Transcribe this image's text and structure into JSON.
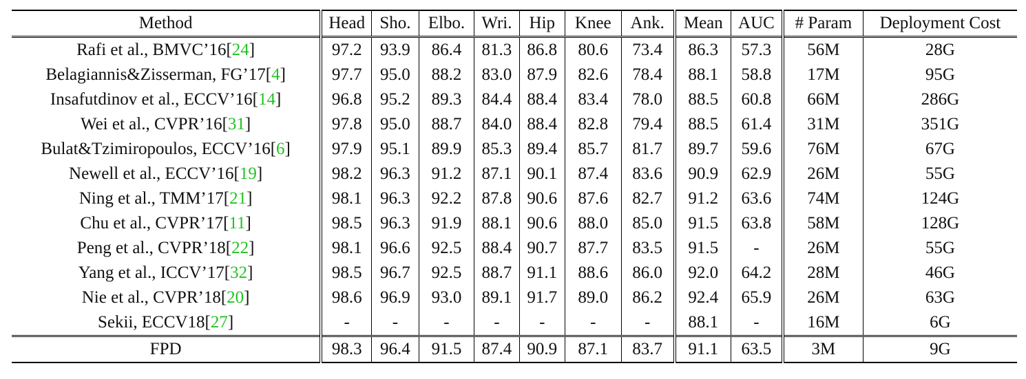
{
  "header": {
    "method": "Method",
    "cols": [
      "Head",
      "Sho.",
      "Elbo.",
      "Wri.",
      "Hip",
      "Knee",
      "Ank.",
      "Mean",
      "AUC",
      "# Param",
      "Deployment Cost"
    ]
  },
  "rows": [
    {
      "name": "Rafi et al., BMVC’16[",
      "ref": "24",
      "close": "]",
      "vals": [
        "97.2",
        "93.9",
        "86.4",
        "81.3",
        "86.8",
        "80.6",
        "73.4",
        "86.3",
        "57.3",
        "56M",
        "28G"
      ]
    },
    {
      "name": "Belagiannis&Zisserman, FG’17[",
      "ref": "4",
      "close": "]",
      "vals": [
        "97.7",
        "95.0",
        "88.2",
        "83.0",
        "87.9",
        "82.6",
        "78.4",
        "88.1",
        "58.8",
        "17M",
        "95G"
      ]
    },
    {
      "name": "Insafutdinov et al., ECCV’16[",
      "ref": "14",
      "close": "]",
      "vals": [
        "96.8",
        "95.2",
        "89.3",
        "84.4",
        "88.4",
        "83.4",
        "78.0",
        "88.5",
        "60.8",
        "66M",
        "286G"
      ]
    },
    {
      "name": "Wei et al., CVPR’16[",
      "ref": "31",
      "close": "]",
      "vals": [
        "97.8",
        "95.0",
        "88.7",
        "84.0",
        "88.4",
        "82.8",
        "79.4",
        "88.5",
        "61.4",
        "31M",
        "351G"
      ]
    },
    {
      "name": "Bulat&Tzimiropoulos, ECCV’16[",
      "ref": "6",
      "close": "]",
      "vals": [
        "97.9",
        "95.1",
        "89.9",
        "85.3",
        "89.4",
        "85.7",
        "81.7",
        "89.7",
        "59.6",
        "76M",
        "67G"
      ]
    },
    {
      "name": "Newell et al., ECCV’16[",
      "ref": "19",
      "close": "]",
      "vals": [
        "98.2",
        "96.3",
        "91.2",
        "87.1",
        "90.1",
        "87.4",
        "83.6",
        "90.9",
        "62.9",
        "26M",
        "55G"
      ]
    },
    {
      "name": "Ning et al., TMM’17[",
      "ref": "21",
      "close": "]",
      "vals": [
        "98.1",
        "96.3",
        "92.2",
        "87.8",
        "90.6",
        "87.6",
        "82.7",
        "91.2",
        "63.6",
        "74M",
        "124G"
      ]
    },
    {
      "name": "Chu et al., CVPR’17[",
      "ref": "11",
      "close": "]",
      "vals": [
        "98.5",
        "96.3",
        "91.9",
        "88.1",
        "90.6",
        "88.0",
        "85.0",
        "91.5",
        "63.8",
        "58M",
        "128G"
      ]
    },
    {
      "name": "Peng et al., CVPR’18[",
      "ref": "22",
      "close": "]",
      "vals": [
        "98.1",
        "96.6",
        "92.5",
        "88.4",
        "90.7",
        "87.7",
        "83.5",
        "91.5",
        "-",
        "26M",
        "55G"
      ]
    },
    {
      "name": "Yang et al., ICCV’17[",
      "ref": "32",
      "close": "]",
      "vals": [
        "98.5",
        "96.7",
        "92.5",
        "88.7",
        "91.1",
        "88.6",
        "86.0",
        "92.0",
        "64.2",
        "28M",
        "46G"
      ]
    },
    {
      "name": "Nie et al., CVPR’18[",
      "ref": "20",
      "close": "]",
      "vals": [
        "98.6",
        "96.9",
        "93.0",
        "89.1",
        "91.7",
        "89.0",
        "86.2",
        "92.4",
        "65.9",
        "26M",
        "63G"
      ]
    },
    {
      "name": "Sekii, ECCV18[",
      "ref": "27",
      "close": "]",
      "vals": [
        "-",
        "-",
        "-",
        "-",
        "-",
        "-",
        "-",
        "88.1",
        "-",
        "16M",
        "6G"
      ]
    },
    {
      "name": "FPD",
      "ref": "",
      "close": "",
      "vals": [
        "98.3",
        "96.4",
        "91.5",
        "87.4",
        "90.9",
        "87.1",
        "83.7",
        "91.1",
        "63.5",
        "3M",
        "9G"
      ]
    }
  ],
  "colors": {
    "ref": "#22c322"
  }
}
